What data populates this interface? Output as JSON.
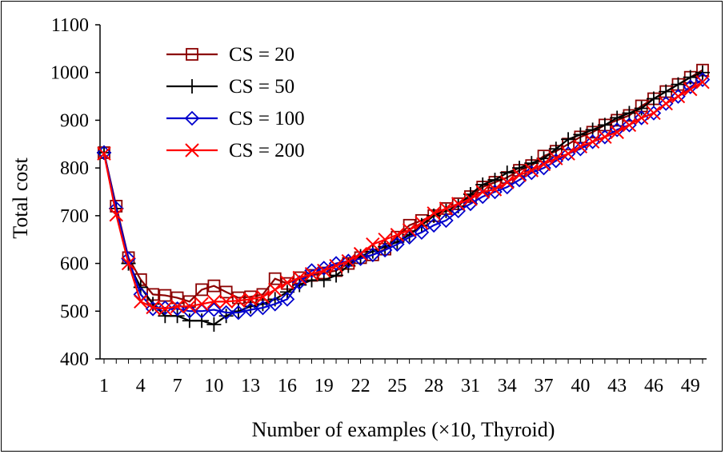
{
  "chart_data": {
    "type": "line",
    "title": "",
    "xlabel": "Number of examples (×10, Thyroid)",
    "ylabel": "Total cost",
    "xlim": [
      1,
      50
    ],
    "ylim": [
      400,
      1100
    ],
    "xticks": [
      1,
      4,
      7,
      10,
      13,
      16,
      19,
      22,
      25,
      28,
      31,
      34,
      37,
      40,
      43,
      46,
      49
    ],
    "yticks": [
      400,
      500,
      600,
      700,
      800,
      900,
      1000,
      1100
    ],
    "grid": false,
    "legend_position": "top-left",
    "x": [
      1,
      2,
      3,
      4,
      5,
      6,
      7,
      8,
      9,
      10,
      11,
      12,
      13,
      14,
      15,
      16,
      17,
      18,
      19,
      20,
      21,
      22,
      23,
      24,
      25,
      26,
      27,
      28,
      29,
      30,
      31,
      32,
      33,
      34,
      35,
      36,
      37,
      38,
      39,
      40,
      41,
      42,
      43,
      44,
      45,
      46,
      47,
      48,
      49,
      50
    ],
    "series": [
      {
        "name": "CS = 20",
        "color": "#8b0000",
        "marker": "square",
        "values": [
          832,
          720,
          612,
          566,
          535,
          533,
          528,
          520,
          545,
          553,
          540,
          528,
          530,
          535,
          568,
          558,
          570,
          575,
          580,
          585,
          600,
          612,
          618,
          630,
          655,
          680,
          690,
          700,
          715,
          725,
          740,
          760,
          770,
          780,
          795,
          805,
          825,
          835,
          850,
          865,
          875,
          890,
          900,
          910,
          930,
          945,
          960,
          975,
          990,
          1005
        ]
      },
      {
        "name": "CS = 50",
        "color": "#000000",
        "marker": "plus",
        "values": [
          832,
          715,
          600,
          550,
          515,
          490,
          490,
          480,
          480,
          472,
          490,
          500,
          510,
          515,
          525,
          540,
          555,
          565,
          565,
          575,
          595,
          615,
          625,
          635,
          645,
          660,
          680,
          700,
          710,
          720,
          745,
          765,
          775,
          790,
          800,
          810,
          820,
          840,
          860,
          870,
          880,
          890,
          905,
          915,
          925,
          945,
          960,
          975,
          990,
          1000
        ]
      },
      {
        "name": "CS = 100",
        "color": "#0000cd",
        "marker": "diamond",
        "values": [
          832,
          715,
          610,
          535,
          505,
          507,
          505,
          500,
          500,
          503,
          497,
          497,
          503,
          507,
          515,
          525,
          560,
          585,
          590,
          600,
          605,
          610,
          618,
          628,
          640,
          655,
          665,
          680,
          690,
          710,
          725,
          740,
          750,
          760,
          775,
          790,
          800,
          815,
          830,
          840,
          855,
          865,
          880,
          890,
          905,
          915,
          935,
          950,
          970,
          985
        ]
      },
      {
        "name": "CS = 200",
        "color": "#ff0000",
        "marker": "x",
        "values": [
          830,
          702,
          600,
          520,
          508,
          505,
          510,
          510,
          515,
          520,
          520,
          522,
          525,
          530,
          545,
          560,
          570,
          578,
          585,
          595,
          605,
          620,
          640,
          650,
          660,
          670,
          685,
          705,
          715,
          725,
          735,
          750,
          755,
          770,
          785,
          795,
          808,
          820,
          830,
          845,
          855,
          865,
          875,
          890,
          905,
          915,
          935,
          950,
          965,
          980
        ]
      }
    ]
  }
}
